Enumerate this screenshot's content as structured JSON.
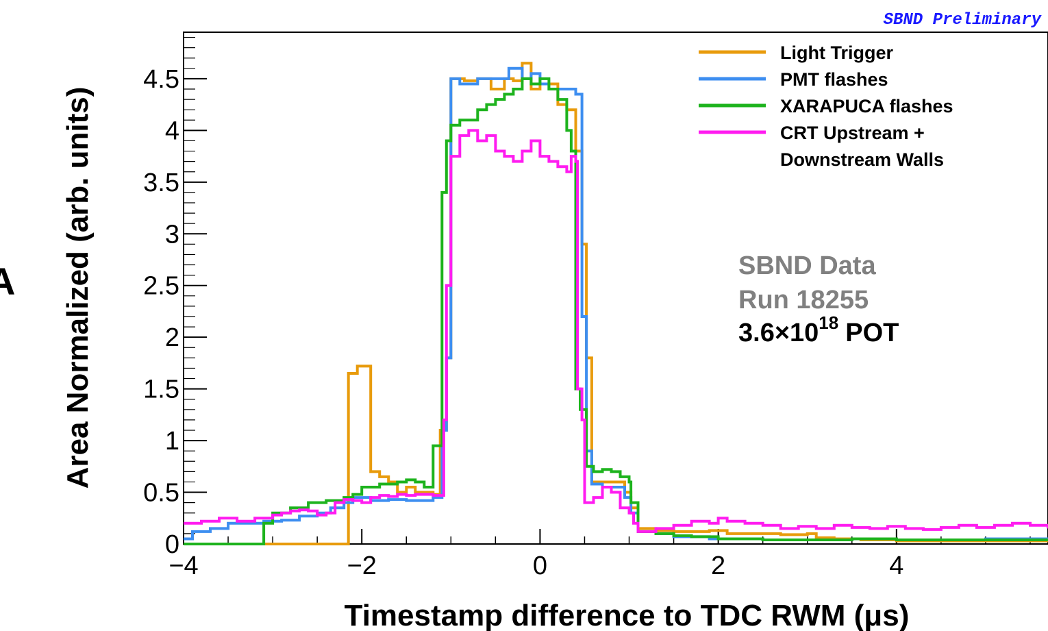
{
  "chart_data": {
    "type": "line",
    "style": "step-histogram",
    "header": "SBND Preliminary",
    "panel_letter": "A",
    "xlabel": "Timestamp difference to TDC RWM (μs)",
    "ylabel": "Area Normalized (arb. units)",
    "xlim": [
      -4,
      5.7
    ],
    "ylim": [
      0,
      4.95
    ],
    "x_ticks": [
      {
        "value": -4,
        "label": "−4"
      },
      {
        "value": -2,
        "label": "−2"
      },
      {
        "value": 0,
        "label": "0"
      },
      {
        "value": 2,
        "label": "2"
      },
      {
        "value": 4,
        "label": "4"
      }
    ],
    "y_ticks": [
      {
        "value": 0,
        "label": "0"
      },
      {
        "value": 0.5,
        "label": "0.5"
      },
      {
        "value": 1,
        "label": "1"
      },
      {
        "value": 1.5,
        "label": "1.5"
      },
      {
        "value": 2,
        "label": "2"
      },
      {
        "value": 2.5,
        "label": "2.5"
      },
      {
        "value": 3,
        "label": "3"
      },
      {
        "value": 3.5,
        "label": "3.5"
      },
      {
        "value": 4,
        "label": "4"
      },
      {
        "value": 4.5,
        "label": "4.5"
      }
    ],
    "grid": false,
    "legend_position": "top-right",
    "annotation": {
      "line1": "SBND Data",
      "line2": "Run 18255",
      "pot_base": "3.6×10",
      "pot_exp": "18",
      "pot_unit": "POT"
    },
    "series": [
      {
        "name": "Light Trigger",
        "label_lines": [
          "Light Trigger"
        ],
        "color": "#e89b0c",
        "points": [
          [
            -4,
            0
          ],
          [
            -2.15,
            0
          ],
          [
            -2.15,
            1.65
          ],
          [
            -2.05,
            1.72
          ],
          [
            -1.95,
            1.72
          ],
          [
            -1.9,
            0.7
          ],
          [
            -1.8,
            0.65
          ],
          [
            -1.7,
            0.6
          ],
          [
            -1.6,
            0.5
          ],
          [
            -1.5,
            0.55
          ],
          [
            -1.4,
            0.5
          ],
          [
            -1.3,
            0.5
          ],
          [
            -1.2,
            0.48
          ],
          [
            -1.12,
            1.1
          ],
          [
            -1.05,
            1.8
          ],
          [
            -1.0,
            4.5
          ],
          [
            -0.85,
            4.48
          ],
          [
            -0.7,
            4.5
          ],
          [
            -0.55,
            4.4
          ],
          [
            -0.4,
            4.5
          ],
          [
            -0.3,
            4.48
          ],
          [
            -0.2,
            4.65
          ],
          [
            -0.1,
            4.4
          ],
          [
            0,
            4.45
          ],
          [
            0.1,
            4.45
          ],
          [
            0.2,
            4.25
          ],
          [
            0.3,
            4.2
          ],
          [
            0.4,
            3.8
          ],
          [
            0.47,
            2.9
          ],
          [
            0.52,
            1.8
          ],
          [
            0.58,
            0.6
          ],
          [
            0.7,
            0.6
          ],
          [
            0.85,
            0.6
          ],
          [
            0.95,
            0.5
          ],
          [
            1.02,
            0.35
          ],
          [
            1.1,
            0.15
          ],
          [
            1.3,
            0.13
          ],
          [
            1.5,
            0.12
          ],
          [
            1.7,
            0.12
          ],
          [
            1.9,
            0.13
          ],
          [
            2.1,
            0.1
          ],
          [
            2.4,
            0.1
          ],
          [
            2.7,
            0.09
          ],
          [
            3.0,
            0.1
          ],
          [
            3.1,
            0.06
          ],
          [
            3.3,
            0.05
          ],
          [
            3.6,
            0.04
          ],
          [
            4.0,
            0.03
          ],
          [
            4.5,
            0.03
          ],
          [
            5.0,
            0.03
          ],
          [
            5.7,
            0.03
          ]
        ]
      },
      {
        "name": "PMT flashes",
        "label_lines": [
          "PMT flashes"
        ],
        "color": "#3d8ef0",
        "points": [
          [
            -4,
            0.05
          ],
          [
            -3.9,
            0.12
          ],
          [
            -3.7,
            0.15
          ],
          [
            -3.5,
            0.2
          ],
          [
            -3.3,
            0.2
          ],
          [
            -3.1,
            0.22
          ],
          [
            -2.9,
            0.23
          ],
          [
            -2.7,
            0.27
          ],
          [
            -2.5,
            0.3
          ],
          [
            -2.35,
            0.35
          ],
          [
            -2.2,
            0.4
          ],
          [
            -2.1,
            0.45
          ],
          [
            -2.0,
            0.45
          ],
          [
            -1.9,
            0.42
          ],
          [
            -1.7,
            0.43
          ],
          [
            -1.5,
            0.42
          ],
          [
            -1.3,
            0.42
          ],
          [
            -1.2,
            0.45
          ],
          [
            -1.15,
            0.45
          ],
          [
            -1.1,
            1.1
          ],
          [
            -1.05,
            1.8
          ],
          [
            -1.0,
            4.5
          ],
          [
            -0.9,
            4.45
          ],
          [
            -0.7,
            4.5
          ],
          [
            -0.5,
            4.5
          ],
          [
            -0.35,
            4.6
          ],
          [
            -0.2,
            4.5
          ],
          [
            -0.1,
            4.55
          ],
          [
            0,
            4.45
          ],
          [
            0.1,
            4.4
          ],
          [
            0.2,
            4.4
          ],
          [
            0.3,
            4.4
          ],
          [
            0.4,
            4.35
          ],
          [
            0.47,
            2.2
          ],
          [
            0.52,
            0.9
          ],
          [
            0.58,
            0.58
          ],
          [
            0.7,
            0.55
          ],
          [
            0.85,
            0.55
          ],
          [
            0.95,
            0.45
          ],
          [
            1.02,
            0.3
          ],
          [
            1.1,
            0.12
          ],
          [
            1.3,
            0.1
          ],
          [
            1.5,
            0.07
          ],
          [
            1.7,
            0.07
          ],
          [
            1.9,
            0.05
          ],
          [
            2.1,
            0.05
          ],
          [
            2.5,
            0.04
          ],
          [
            3.0,
            0.04
          ],
          [
            3.5,
            0.05
          ],
          [
            4.0,
            0.04
          ],
          [
            4.5,
            0.04
          ],
          [
            5.0,
            0.05
          ],
          [
            5.7,
            0.05
          ]
        ]
      },
      {
        "name": "XARAPUCA flashes",
        "label_lines": [
          "XARAPUCA flashes"
        ],
        "color": "#1db31d",
        "points": [
          [
            -4,
            0
          ],
          [
            -3.2,
            0
          ],
          [
            -3.1,
            0.2
          ],
          [
            -3.0,
            0.3
          ],
          [
            -2.8,
            0.35
          ],
          [
            -2.6,
            0.4
          ],
          [
            -2.4,
            0.42
          ],
          [
            -2.2,
            0.45
          ],
          [
            -2.1,
            0.48
          ],
          [
            -2.0,
            0.55
          ],
          [
            -1.8,
            0.58
          ],
          [
            -1.6,
            0.6
          ],
          [
            -1.5,
            0.62
          ],
          [
            -1.4,
            0.6
          ],
          [
            -1.3,
            0.55
          ],
          [
            -1.2,
            0.95
          ],
          [
            -1.1,
            3.4
          ],
          [
            -1.05,
            3.9
          ],
          [
            -1.0,
            4.05
          ],
          [
            -0.9,
            4.1
          ],
          [
            -0.8,
            4.1
          ],
          [
            -0.7,
            4.2
          ],
          [
            -0.6,
            4.25
          ],
          [
            -0.5,
            4.3
          ],
          [
            -0.4,
            4.35
          ],
          [
            -0.3,
            4.4
          ],
          [
            -0.2,
            4.5
          ],
          [
            -0.1,
            4.45
          ],
          [
            0,
            4.5
          ],
          [
            0.1,
            4.4
          ],
          [
            0.2,
            4.3
          ],
          [
            0.3,
            4.0
          ],
          [
            0.35,
            3.8
          ],
          [
            0.4,
            1.5
          ],
          [
            0.45,
            1.3
          ],
          [
            0.52,
            0.75
          ],
          [
            0.6,
            0.7
          ],
          [
            0.7,
            0.72
          ],
          [
            0.8,
            0.7
          ],
          [
            0.9,
            0.65
          ],
          [
            1.0,
            0.6
          ],
          [
            1.02,
            0.4
          ],
          [
            1.1,
            0.12
          ],
          [
            1.3,
            0.1
          ],
          [
            1.5,
            0.08
          ],
          [
            1.7,
            0.07
          ],
          [
            2.0,
            0.05
          ],
          [
            2.5,
            0.04
          ],
          [
            3.0,
            0.04
          ],
          [
            3.5,
            0.05
          ],
          [
            4.0,
            0.04
          ],
          [
            4.5,
            0.04
          ],
          [
            5.0,
            0.04
          ],
          [
            5.7,
            0.04
          ]
        ]
      },
      {
        "name": "CRT Upstream + Downstream Walls",
        "label_lines": [
          "CRT Upstream +",
          "Downstream Walls"
        ],
        "color": "#ff1cf0",
        "points": [
          [
            -4,
            0.2
          ],
          [
            -3.8,
            0.22
          ],
          [
            -3.6,
            0.25
          ],
          [
            -3.4,
            0.22
          ],
          [
            -3.2,
            0.25
          ],
          [
            -3.0,
            0.28
          ],
          [
            -2.9,
            0.3
          ],
          [
            -2.8,
            0.32
          ],
          [
            -2.7,
            0.33
          ],
          [
            -2.6,
            0.32
          ],
          [
            -2.5,
            0.28
          ],
          [
            -2.4,
            0.3
          ],
          [
            -2.3,
            0.4
          ],
          [
            -2.2,
            0.43
          ],
          [
            -2.1,
            0.42
          ],
          [
            -2.0,
            0.4
          ],
          [
            -1.9,
            0.45
          ],
          [
            -1.8,
            0.47
          ],
          [
            -1.7,
            0.46
          ],
          [
            -1.6,
            0.48
          ],
          [
            -1.5,
            0.47
          ],
          [
            -1.4,
            0.48
          ],
          [
            -1.3,
            0.48
          ],
          [
            -1.2,
            0.47
          ],
          [
            -1.1,
            0.47
          ],
          [
            -1.08,
            1.2
          ],
          [
            -1.05,
            2.5
          ],
          [
            -1.0,
            3.75
          ],
          [
            -0.9,
            3.95
          ],
          [
            -0.8,
            4.0
          ],
          [
            -0.7,
            3.9
          ],
          [
            -0.6,
            3.95
          ],
          [
            -0.5,
            3.8
          ],
          [
            -0.4,
            3.75
          ],
          [
            -0.3,
            3.7
          ],
          [
            -0.2,
            3.8
          ],
          [
            -0.1,
            3.9
          ],
          [
            0,
            3.75
          ],
          [
            0.1,
            3.7
          ],
          [
            0.2,
            3.65
          ],
          [
            0.3,
            3.6
          ],
          [
            0.35,
            3.75
          ],
          [
            0.4,
            3.7
          ],
          [
            0.42,
            1.5
          ],
          [
            0.47,
            1.2
          ],
          [
            0.5,
            0.4
          ],
          [
            0.6,
            0.45
          ],
          [
            0.7,
            0.55
          ],
          [
            0.8,
            0.5
          ],
          [
            0.9,
            0.35
          ],
          [
            1.0,
            0.3
          ],
          [
            1.05,
            0.2
          ],
          [
            1.1,
            0.12
          ],
          [
            1.3,
            0.15
          ],
          [
            1.5,
            0.18
          ],
          [
            1.7,
            0.22
          ],
          [
            1.9,
            0.2
          ],
          [
            2.0,
            0.25
          ],
          [
            2.1,
            0.22
          ],
          [
            2.3,
            0.2
          ],
          [
            2.5,
            0.18
          ],
          [
            2.7,
            0.15
          ],
          [
            2.9,
            0.17
          ],
          [
            3.1,
            0.15
          ],
          [
            3.3,
            0.18
          ],
          [
            3.5,
            0.16
          ],
          [
            3.7,
            0.15
          ],
          [
            3.9,
            0.17
          ],
          [
            4.1,
            0.15
          ],
          [
            4.3,
            0.14
          ],
          [
            4.5,
            0.16
          ],
          [
            4.7,
            0.18
          ],
          [
            4.9,
            0.16
          ],
          [
            5.1,
            0.18
          ],
          [
            5.3,
            0.2
          ],
          [
            5.5,
            0.18
          ],
          [
            5.7,
            0.15
          ]
        ]
      }
    ]
  }
}
